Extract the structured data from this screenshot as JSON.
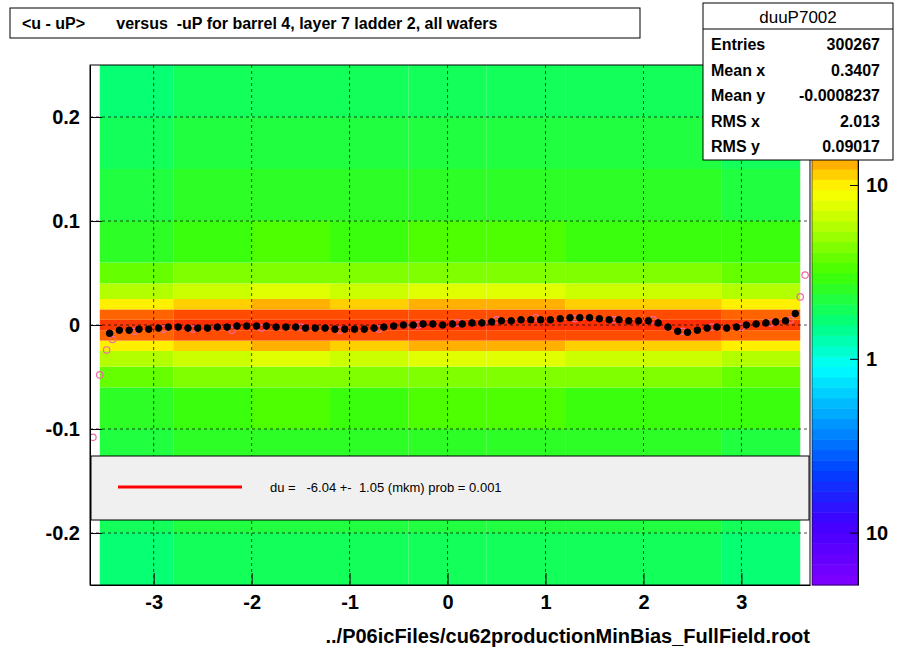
{
  "chart_data": {
    "type": "heatmap",
    "title": "<u - uP>       versus  -uP for barrel 4, layer 7 ladder 2, all wafers",
    "x_label": "../P06icFiles/cu62productionMinBias_FullField.root",
    "xlim": [
      -3.65,
      3.7
    ],
    "xticks": [
      -3,
      -2,
      -1,
      0,
      1,
      2,
      3
    ],
    "ylim": [
      -0.25,
      0.25
    ],
    "yticks": [
      -0.2,
      -0.1,
      0,
      0.1,
      0.2
    ],
    "grid": true,
    "annotations": [
      "du =   -6.04 +-  1.05 (mkm) prob = 0.001"
    ],
    "stats": {
      "title": "duuP7002",
      "rows": [
        [
          "Entries",
          "300267"
        ],
        [
          "Mean x",
          "0.3407"
        ],
        [
          "Mean y",
          "-0.0008237"
        ],
        [
          "RMS x",
          "2.013"
        ],
        [
          "RMS y",
          "0.09017"
        ]
      ]
    },
    "heatmap": {
      "xbins": [
        -3.55,
        -2.8,
        -2.0,
        -1.2,
        -0.4,
        0.4,
        1.2,
        2.0,
        2.8,
        3.6
      ],
      "ybins": [
        -0.25,
        -0.2,
        -0.15,
        -0.1,
        -0.06,
        -0.04,
        -0.025,
        -0.015,
        -0.005,
        0.005,
        0.015,
        0.025,
        0.04,
        0.06,
        0.1,
        0.15,
        0.2,
        0.25
      ],
      "cells": [
        [
          1.6,
          1.8,
          1.9,
          1.8,
          1.9,
          1.9,
          1.8,
          1.8,
          1.6
        ],
        [
          1.9,
          2.1,
          2.2,
          2.1,
          2.2,
          2.2,
          2.1,
          2.1,
          1.9
        ],
        [
          2.2,
          2.5,
          2.6,
          2.5,
          2.6,
          2.6,
          2.5,
          2.5,
          2.2
        ],
        [
          2.7,
          3.1,
          3.2,
          3.1,
          3.3,
          3.3,
          3.1,
          3.1,
          2.8
        ],
        [
          3.8,
          4.4,
          4.6,
          4.4,
          4.7,
          4.7,
          4.4,
          4.4,
          3.9
        ],
        [
          6,
          7,
          7.3,
          7,
          7.5,
          7.5,
          7,
          7,
          6.2
        ],
        [
          10,
          12,
          12.5,
          12,
          13,
          13,
          12,
          12,
          10.5
        ],
        [
          19,
          22,
          23,
          22,
          24,
          24,
          22,
          22,
          19.5
        ],
        [
          26,
          30,
          31,
          30,
          32,
          32,
          30,
          30,
          27
        ],
        [
          19,
          22,
          23,
          22,
          24,
          24,
          22,
          22,
          19.5
        ],
        [
          10,
          12,
          12.5,
          12,
          13,
          13,
          12,
          12,
          10.5
        ],
        [
          6,
          7,
          7.3,
          7,
          7.5,
          7.5,
          7,
          7,
          6.2
        ],
        [
          3.8,
          4.4,
          4.6,
          4.4,
          4.7,
          4.7,
          4.4,
          4.4,
          3.9
        ],
        [
          2.7,
          3.1,
          3.2,
          3.1,
          3.3,
          3.3,
          3.1,
          3.1,
          2.8
        ],
        [
          2.2,
          2.5,
          2.6,
          2.5,
          2.6,
          2.6,
          2.5,
          2.5,
          2.2
        ],
        [
          1.9,
          2.1,
          2.2,
          2.1,
          2.2,
          2.2,
          2.1,
          2.1,
          1.9
        ],
        [
          1.6,
          1.8,
          1.9,
          1.8,
          1.9,
          1.9,
          1.8,
          1.8,
          1.6
        ]
      ],
      "zlim": [
        0.05,
        49
      ],
      "log": true,
      "zticks": [
        {
          "value": 0.1,
          "label": "10"
        },
        {
          "value": 1,
          "label": "1"
        },
        {
          "value": 10,
          "label": "10"
        }
      ]
    },
    "series": [
      {
        "type": "scatter",
        "marker": "circle",
        "color": "#000000",
        "x": [
          -3.45,
          -3.35,
          -3.25,
          -3.15,
          -3.05,
          -2.95,
          -2.85,
          -2.75,
          -2.65,
          -2.55,
          -2.45,
          -2.35,
          -2.25,
          -2.15,
          -2.05,
          -1.95,
          -1.85,
          -1.75,
          -1.65,
          -1.55,
          -1.45,
          -1.35,
          -1.25,
          -1.15,
          -1.05,
          -0.95,
          -0.85,
          -0.75,
          -0.65,
          -0.55,
          -0.45,
          -0.35,
          -0.25,
          -0.15,
          -0.05,
          0.05,
          0.15,
          0.25,
          0.35,
          0.45,
          0.55,
          0.65,
          0.75,
          0.85,
          0.95,
          1.05,
          1.15,
          1.25,
          1.35,
          1.45,
          1.55,
          1.65,
          1.75,
          1.85,
          1.95,
          2.05,
          2.15,
          2.25,
          2.35,
          2.45,
          2.55,
          2.65,
          2.75,
          2.85,
          2.95,
          3.05,
          3.15,
          3.25,
          3.35,
          3.45,
          3.55
        ],
        "values": [
          -0.008,
          -0.005,
          -0.005,
          -0.004,
          -0.004,
          -0.003,
          -0.002,
          -0.002,
          -0.003,
          -0.003,
          -0.003,
          -0.002,
          -0.002,
          -0.001,
          -0.001,
          -0.001,
          -0.001,
          -0.002,
          -0.002,
          -0.002,
          -0.003,
          -0.003,
          -0.003,
          -0.004,
          -0.004,
          -0.004,
          -0.004,
          -0.003,
          -0.002,
          -0.001,
          0.0,
          0.0,
          0.001,
          0.001,
          0.0,
          0.001,
          0.001,
          0.002,
          0.002,
          0.003,
          0.004,
          0.004,
          0.005,
          0.005,
          0.005,
          0.005,
          0.006,
          0.007,
          0.007,
          0.007,
          0.006,
          0.005,
          0.005,
          0.004,
          0.004,
          0.004,
          0.002,
          -0.002,
          -0.006,
          -0.007,
          -0.005,
          -0.003,
          -0.002,
          -0.003,
          -0.002,
          0.0,
          0.001,
          0.002,
          0.003,
          0.004,
          0.011
        ]
      },
      {
        "type": "scatter",
        "marker": "open-circle",
        "color": "#ee66aa",
        "x": [
          -3.62,
          -3.55,
          -3.48,
          -3.42,
          -3.2,
          -2.9,
          -2.6,
          -2.2,
          -1.9,
          -1.5,
          -1.1,
          -0.7,
          -0.3,
          0.1,
          0.5,
          0.9,
          1.3,
          1.7,
          2.1,
          2.4,
          2.7,
          3.0,
          3.3,
          3.5,
          3.6,
          3.65
        ],
        "values": [
          -0.108,
          -0.048,
          -0.024,
          -0.014,
          -0.006,
          -0.004,
          -0.004,
          -0.005,
          -0.003,
          -0.002,
          -0.005,
          -0.004,
          0.0,
          0.002,
          0.005,
          0.007,
          0.006,
          0.005,
          0.005,
          -0.006,
          -0.002,
          -0.002,
          0.002,
          0.005,
          0.027,
          0.048
        ]
      }
    ]
  }
}
